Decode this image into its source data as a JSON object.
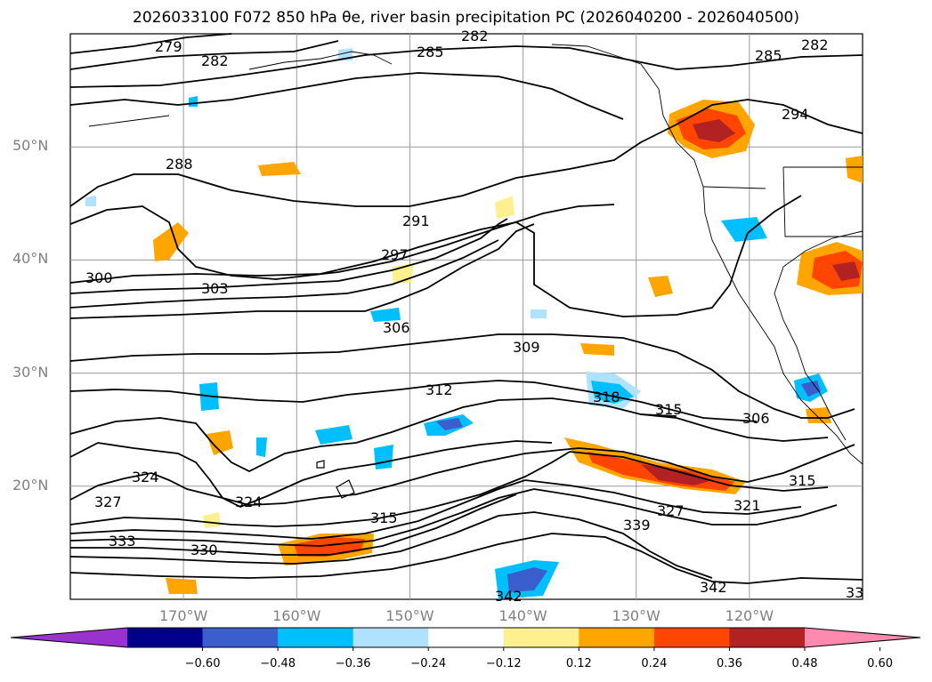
{
  "title": "2026033100 F072 850 hPa θe, river basin precipitation PC (2026040200 - 2026040500)",
  "map": {
    "lon_range": [
      -180,
      -110
    ],
    "lat_range": [
      10,
      60
    ],
    "lat_labels": [
      "50°N",
      "40°N",
      "30°N",
      "20°N"
    ],
    "lat_values": [
      50,
      40,
      30,
      20
    ],
    "lon_labels": [
      "170°W",
      "160°W",
      "150°W",
      "140°W",
      "130°W",
      "120°W"
    ],
    "lon_values": [
      -170,
      -160,
      -150,
      -140,
      -130,
      -120
    ],
    "contour_labels": [
      "279",
      "282",
      "282",
      "282",
      "285",
      "285",
      "294",
      "288",
      "291",
      "297",
      "300",
      "303",
      "306",
      "309",
      "312",
      "318",
      "315",
      "306",
      "324",
      "327",
      "324",
      "333",
      "330",
      "315",
      "339",
      "327",
      "321",
      "315",
      "342",
      "342",
      "33"
    ],
    "gridlines": true
  },
  "colorbar": {
    "ticks": [
      "−0.60",
      "−0.48",
      "−0.36",
      "−0.24",
      "−0.12",
      "0.12",
      "0.24",
      "0.36",
      "0.48",
      "0.60"
    ],
    "colors": [
      "#9a32cd",
      "#00008b",
      "#3a5fcd",
      "#00bfff",
      "#b0e2ff",
      "#ffffff",
      "#fff08f",
      "#ffa500",
      "#ff4500",
      "#b22222",
      "#ff8ab0"
    ],
    "extend": "both"
  }
}
